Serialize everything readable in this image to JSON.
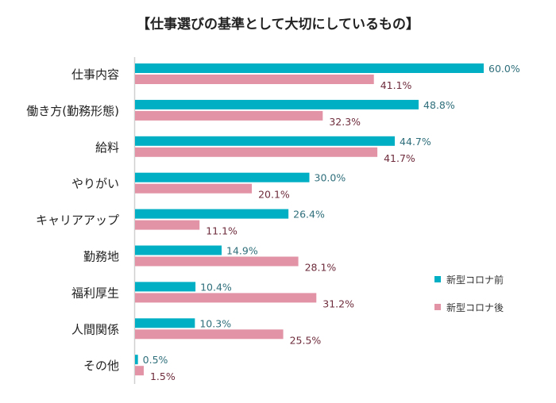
{
  "chart_data": {
    "type": "bar",
    "orientation": "horizontal",
    "title": "【仕事選びの基準として大切にしているもの】",
    "categories": [
      "仕事内容",
      "働き方(勤務形態)",
      "給料",
      "やりがい",
      "キャリアアップ",
      "勤務地",
      "福利厚生",
      "人間関係",
      "その他"
    ],
    "series": [
      {
        "name": "新型コロナ前",
        "color": "#00afc4",
        "label_color": "#2f6f7b",
        "values": [
          60.0,
          48.8,
          44.7,
          30.0,
          26.4,
          14.9,
          10.4,
          10.3,
          0.5
        ]
      },
      {
        "name": "新型コロナ後",
        "color": "#e294a6",
        "label_color": "#6e2c3c",
        "values": [
          41.1,
          32.3,
          41.7,
          20.1,
          11.1,
          28.1,
          31.2,
          25.5,
          1.5
        ]
      }
    ],
    "value_suffix": "%",
    "xlim": [
      0,
      60
    ],
    "grid": false,
    "legend": "right"
  }
}
